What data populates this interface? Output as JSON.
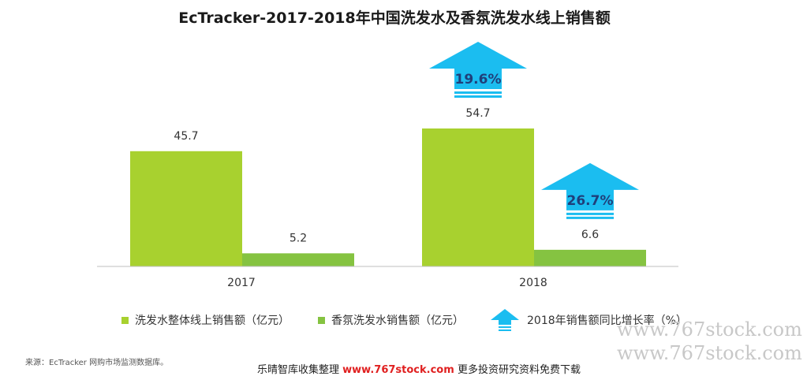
{
  "title": "EcTracker-2017-2018年中国洗发水及香氛洗发水线上销售额",
  "chart_data": {
    "type": "bar",
    "categories": [
      "2017",
      "2018"
    ],
    "series": [
      {
        "name": "洗发水整体线上销售额（亿元）",
        "values": [
          45.7,
          54.7
        ],
        "color": "#a8d12f"
      },
      {
        "name": "香氛洗发水销售额（亿元）",
        "values": [
          5.2,
          6.6
        ],
        "color": "#85c341"
      }
    ],
    "growth": [
      {
        "label": "19.6%",
        "value": 19.6,
        "series": "洗发水整体线上销售额（亿元）"
      },
      {
        "label": "26.7%",
        "value": 26.7,
        "series": "香氛洗发水销售额（亿元）"
      }
    ],
    "growth_legend": "2018年销售额同比增长率（%）",
    "growth_color": "#1bbdf0",
    "value_labels": [
      [
        "45.7",
        "54.7"
      ],
      [
        "5.2",
        "6.6"
      ]
    ],
    "ylim": [
      0,
      54.7
    ]
  },
  "source": "来源：EcTracker 网购市场监测数据库。",
  "watermark": "www.767stock.com",
  "footer": {
    "prefix": "乐晴智库收集整理",
    "url": "www.767stock.com",
    "suffix": "更多投资研究资料免费下载"
  }
}
